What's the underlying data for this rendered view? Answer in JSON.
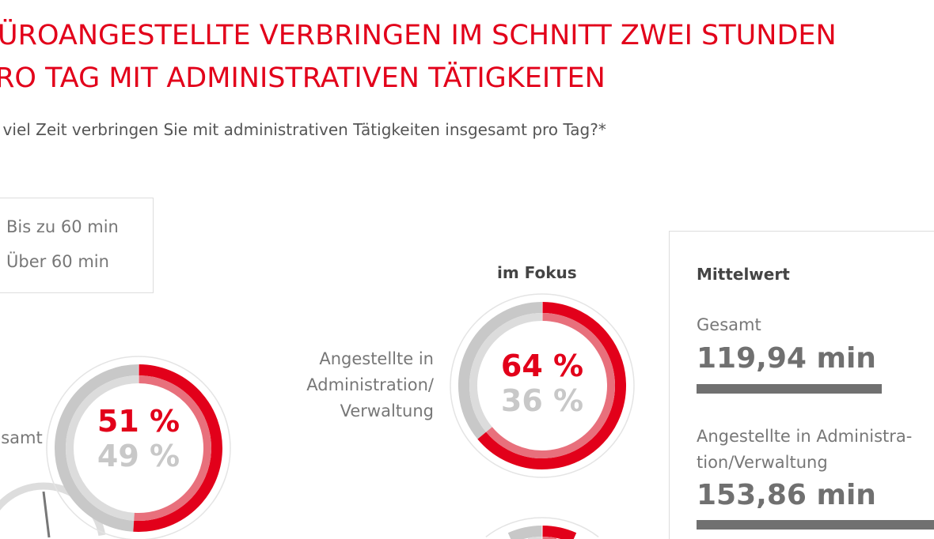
{
  "title": {
    "line1": "BÜROANGESTELLTE VERBRINGEN IM SCHNITT ZWEI STUNDEN",
    "line2": "PRO TAG MIT ADMINISTRATIVEN TÄTIGKEITEN"
  },
  "subtitle": "Wie viel Zeit verbringen Sie mit administrativen Tätigkeiten insgesamt pro Tag?*",
  "legend": [
    {
      "label": "Bis zu 60 min",
      "color": "#e2001a"
    },
    {
      "label": "Über 60 min",
      "color": "#c8c8c8"
    }
  ],
  "focus_label": "im Fokus",
  "chart_data": [
    {
      "type": "pie",
      "variant": "donut",
      "label": "Gesamt",
      "categories": [
        "Bis zu 60 min",
        "Über 60 min"
      ],
      "values": [
        51,
        49
      ],
      "value_labels": [
        "51 %",
        "49 %"
      ]
    },
    {
      "type": "pie",
      "variant": "donut",
      "label": "Angestellte in Administration/ Verwaltung",
      "categories": [
        "Bis zu 60 min",
        "Über 60 min"
      ],
      "values": [
        64,
        36
      ],
      "value_labels": [
        "64 %",
        "36 %"
      ]
    },
    {
      "type": "bar",
      "title": "Mittelwert",
      "categories": [
        "Gesamt",
        "Angestellte in Administration/Verwaltung"
      ],
      "values": [
        119.94,
        153.86
      ],
      "value_labels": [
        "119,94 min",
        "153,86 min"
      ],
      "unit": "min"
    }
  ],
  "donut_labels": {
    "d1": "Gesamt",
    "d2_lines": [
      "Angestellte in",
      "Administration/",
      "Verwaltung"
    ]
  },
  "mittelwert": {
    "title": "Mittelwert",
    "gesamt_label": "Gesamt",
    "admin_label_lines": [
      "Angestellte in Administra-",
      "tion/Verwaltung"
    ]
  },
  "colors": {
    "accent": "#e2001a",
    "accent_light": "#e8707c",
    "grey": "#c8c8c8",
    "grey_light": "#dcdcdc",
    "bar": "#707070"
  }
}
